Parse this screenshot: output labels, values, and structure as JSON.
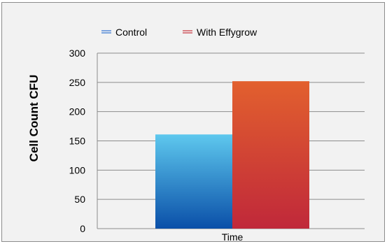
{
  "chart_data": {
    "type": "bar",
    "categories": [
      "Time"
    ],
    "series": [
      {
        "name": "Control",
        "values": [
          161
        ],
        "color_top": "#5ec8ee",
        "color_bottom": "#0a4fa8",
        "legend_color": "#2e6fd0"
      },
      {
        "name": "With Effygrow",
        "values": [
          252
        ],
        "color_top": "#e2602e",
        "color_bottom": "#c0283a",
        "legend_color": "#c8303a"
      }
    ],
    "title": "",
    "xlabel": "",
    "ylabel": "Cell Count CFU",
    "ylim": [
      0,
      300
    ],
    "yticks": [
      0,
      50,
      100,
      150,
      200,
      250,
      300
    ],
    "grid": true,
    "legend_position": "top-left",
    "background_color": "#f2f2f2",
    "gridline_color": "#8c8c8c"
  }
}
